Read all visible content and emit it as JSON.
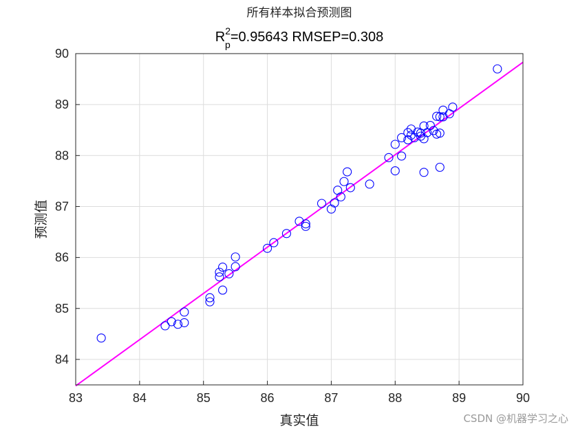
{
  "chart_data": {
    "type": "scatter",
    "title": "所有样本拟合预测图",
    "subtitle_parts": {
      "r": "R",
      "sup": "2",
      "sub": "p",
      "rest": "=0.95643  RMSEP=0.308"
    },
    "xlabel": "真实值",
    "ylabel": "预测值",
    "xlim": [
      83,
      90
    ],
    "ylim": [
      83.5,
      90
    ],
    "xticks": [
      "83",
      "84",
      "85",
      "86",
      "87",
      "88",
      "89",
      "90"
    ],
    "yticks": [
      "84",
      "85",
      "86",
      "87",
      "88",
      "89",
      "90"
    ],
    "grid": true,
    "marker": "circle-open",
    "marker_color": "#0000ff",
    "fit_line": {
      "color": "#ff00ff",
      "points": [
        [
          83,
          83.48
        ],
        [
          90,
          89.83
        ]
      ]
    },
    "points": [
      [
        83.4,
        84.42
      ],
      [
        84.4,
        84.66
      ],
      [
        84.5,
        84.74
      ],
      [
        84.6,
        84.69
      ],
      [
        84.7,
        84.72
      ],
      [
        84.7,
        84.93
      ],
      [
        85.1,
        85.13
      ],
      [
        85.1,
        85.21
      ],
      [
        85.25,
        85.62
      ],
      [
        85.25,
        85.71
      ],
      [
        85.3,
        85.81
      ],
      [
        85.3,
        85.36
      ],
      [
        85.4,
        85.68
      ],
      [
        85.5,
        85.82
      ],
      [
        85.5,
        86.01
      ],
      [
        86.0,
        86.18
      ],
      [
        86.1,
        86.29
      ],
      [
        86.3,
        86.47
      ],
      [
        86.5,
        86.71
      ],
      [
        86.6,
        86.61
      ],
      [
        86.6,
        86.66
      ],
      [
        86.85,
        87.06
      ],
      [
        87.0,
        86.95
      ],
      [
        87.05,
        87.07
      ],
      [
        87.1,
        87.32
      ],
      [
        87.15,
        87.19
      ],
      [
        87.2,
        87.49
      ],
      [
        87.25,
        87.68
      ],
      [
        87.3,
        87.37
      ],
      [
        87.6,
        87.44
      ],
      [
        87.9,
        87.96
      ],
      [
        88.0,
        88.22
      ],
      [
        88.0,
        87.7
      ],
      [
        88.1,
        88.35
      ],
      [
        88.1,
        87.99
      ],
      [
        88.2,
        88.31
      ],
      [
        88.2,
        88.45
      ],
      [
        88.25,
        88.52
      ],
      [
        88.25,
        88.4
      ],
      [
        88.3,
        88.35
      ],
      [
        88.35,
        88.46
      ],
      [
        88.4,
        88.44
      ],
      [
        88.4,
        88.38
      ],
      [
        88.45,
        88.58
      ],
      [
        88.45,
        88.33
      ],
      [
        88.45,
        87.67
      ],
      [
        88.5,
        88.45
      ],
      [
        88.55,
        88.59
      ],
      [
        88.6,
        88.49
      ],
      [
        88.65,
        88.77
      ],
      [
        88.65,
        88.42
      ],
      [
        88.7,
        88.44
      ],
      [
        88.7,
        88.76
      ],
      [
        88.7,
        87.77
      ],
      [
        88.75,
        88.89
      ],
      [
        88.75,
        88.76
      ],
      [
        88.85,
        88.82
      ],
      [
        88.9,
        88.95
      ],
      [
        89.6,
        89.7
      ]
    ]
  },
  "watermark": "CSDN @机器学习之心"
}
